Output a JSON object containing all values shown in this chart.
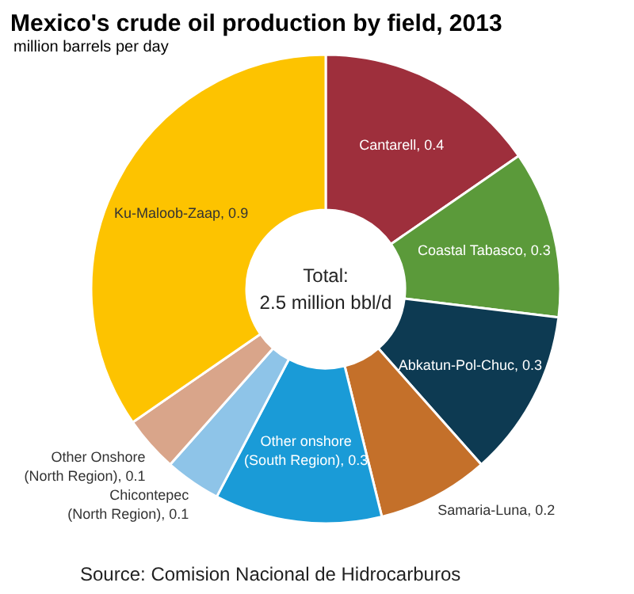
{
  "chart_data": {
    "type": "donut",
    "title": "Mexico's crude oil production by field, 2013",
    "subtitle": "million barrels  per day",
    "categories": [
      "Cantarell, 0.4",
      "Coastal Tabasco, 0.3",
      "Abkatun-Pol-Chuc, 0.3",
      "Samaria-Luna, 0.2",
      "Other onshore (South Region), 0.3",
      "Chicontepec (North Region), 0.1",
      "Other Onshore (North Region), 0.1",
      "Ku-Maloob-Zaap, 0.9"
    ],
    "values": [
      0.4,
      0.3,
      0.3,
      0.2,
      0.3,
      0.1,
      0.1,
      0.9
    ],
    "colors": [
      "#9e2f3c",
      "#5b9a3a",
      "#0d3a52",
      "#c4702a",
      "#1a9bd7",
      "#8ec4e8",
      "#d9a58a",
      "#fdc300"
    ],
    "annotations": [
      "Total:\n2.5 million bbl/d",
      "Source: Comision Nacional de Hidrocarburos"
    ]
  }
}
